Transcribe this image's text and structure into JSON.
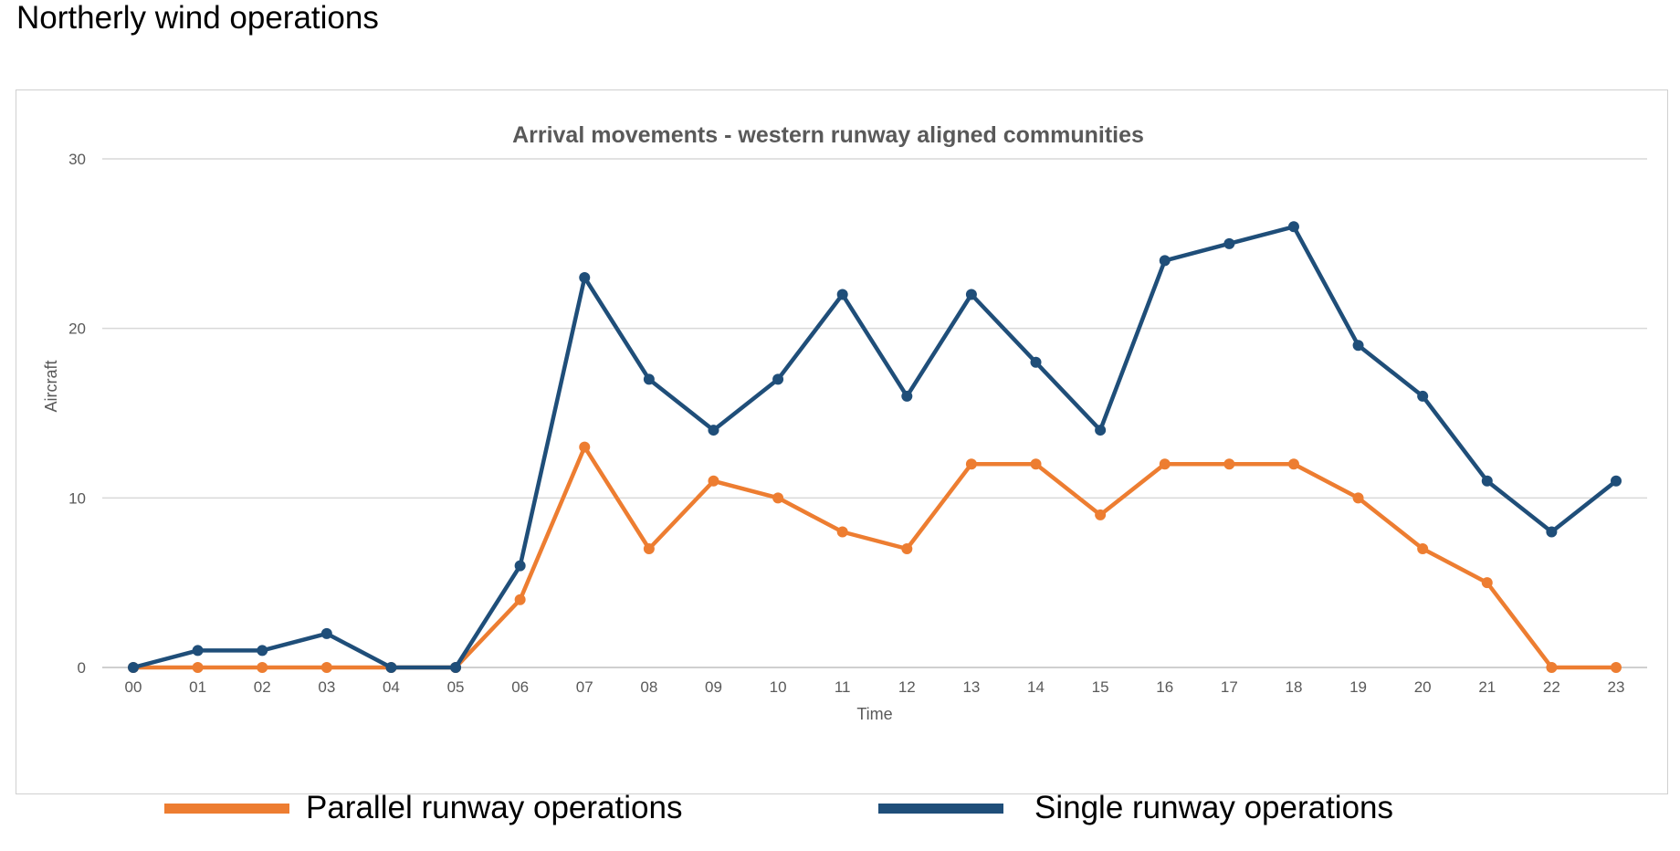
{
  "page": {
    "heading": "Northerly wind operations"
  },
  "chart_data": {
    "type": "line",
    "title": "Arrival movements - western runway aligned communities",
    "xlabel": "Time",
    "ylabel": "Aircraft",
    "ylim": [
      0,
      30
    ],
    "yticks": [
      0,
      10,
      20,
      30
    ],
    "grid": true,
    "legend_position": "bottom",
    "categories": [
      "00",
      "01",
      "02",
      "03",
      "04",
      "05",
      "06",
      "07",
      "08",
      "09",
      "10",
      "11",
      "12",
      "13",
      "14",
      "15",
      "16",
      "17",
      "18",
      "19",
      "20",
      "21",
      "22",
      "23"
    ],
    "series": [
      {
        "name": "Parallel runway operations",
        "color": "#ed7d31",
        "values": [
          0,
          0,
          0,
          0,
          0,
          0,
          4,
          13,
          7,
          11,
          10,
          8,
          7,
          12,
          12,
          9,
          12,
          12,
          12,
          10,
          7,
          5,
          0,
          0
        ]
      },
      {
        "name": "Single runway operations",
        "color": "#1f4e79",
        "values": [
          0,
          1,
          1,
          2,
          0,
          0,
          6,
          23,
          17,
          14,
          17,
          22,
          16,
          22,
          18,
          14,
          24,
          25,
          26,
          19,
          16,
          11,
          8,
          11
        ]
      }
    ]
  }
}
